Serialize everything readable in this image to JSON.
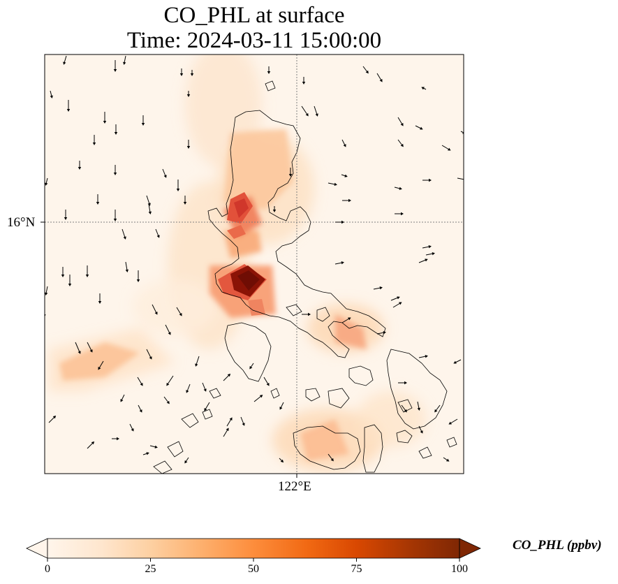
{
  "title_line1": "CO_PHL at surface",
  "title_line2": "Time: 2024-03-11 15:00:00",
  "lat_tick": "16°N",
  "lon_tick": "122°E",
  "colorbar": {
    "label": "CO_PHL (ppbv)",
    "ticks": [
      "0",
      "25",
      "50",
      "75",
      "100"
    ],
    "colors": [
      "#fff5eb",
      "#fee6ce",
      "#fdd0a2",
      "#fdae6b",
      "#fd8d3c",
      "#f16913",
      "#d94801",
      "#a63603",
      "#7f2704"
    ]
  },
  "colors": {
    "coastline": "#000000",
    "gridline": "#7f7f7f",
    "arrow": "#000000"
  }
}
